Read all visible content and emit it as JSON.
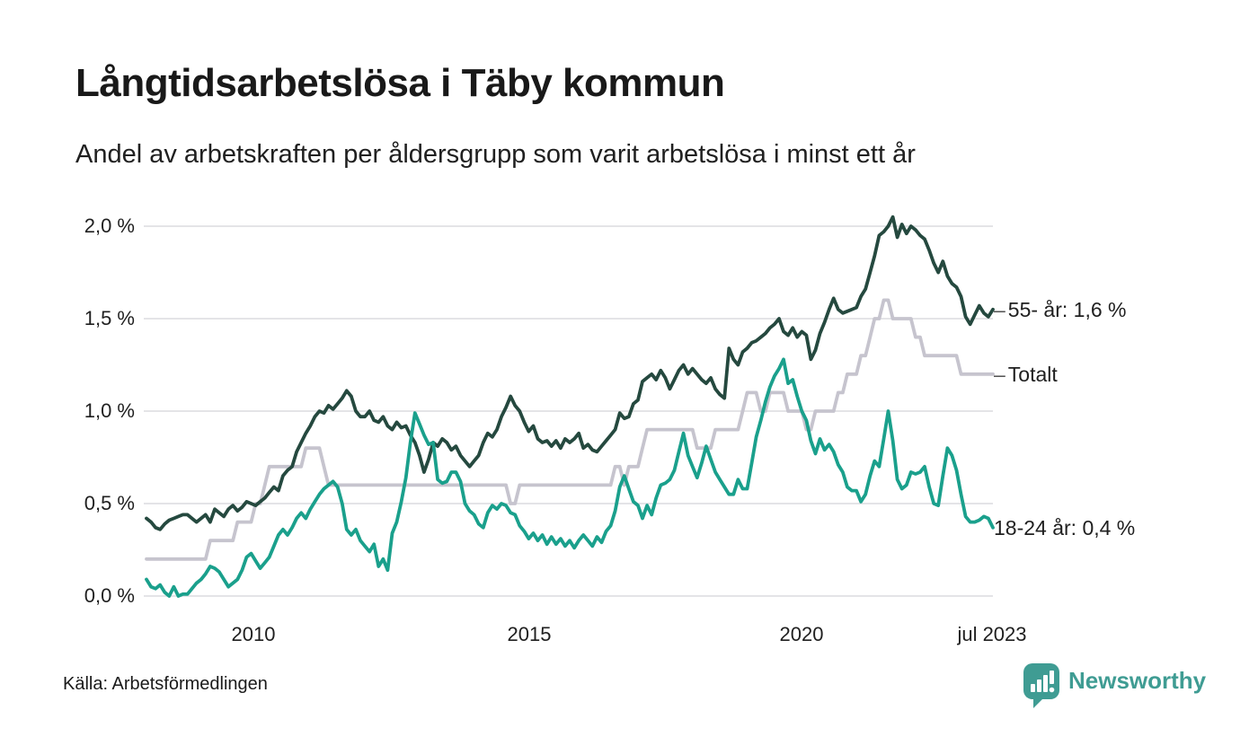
{
  "title": "Långtidsarbetslösa i Täby kommun",
  "subtitle": "Andel av arbetskraften per åldersgrupp som varit arbetslösa i minst ett år",
  "source": "Källa: Arbetsförmedlingen",
  "branding": {
    "name": "Newsworthy",
    "color": "#3f9c93",
    "icon": "newsworthy-speech-bubble-bar-chart-icon"
  },
  "colors": {
    "background": "#ffffff",
    "gridline": "#e4e4e7",
    "text": "#1f1f1f",
    "label_tick": "#555555"
  },
  "chart_data": {
    "type": "line",
    "title": "Långtidsarbetslösa i Täby kommun",
    "subtitle": "Andel av arbetskraften per åldersgrupp som varit arbetslösa i minst ett år",
    "x_start": "2008-01",
    "x_end": "2023-07",
    "x_interval": "monthly",
    "x_tick_labels": [
      "2010",
      "2015",
      "2020",
      "jul 2023"
    ],
    "y_tick_labels": [
      "2,0 %",
      "1,5 %",
      "1,0 %",
      "0,5 %",
      "0,0 %"
    ],
    "ylabel": "",
    "xlabel": "",
    "ylim": [
      0,
      2.1
    ],
    "grid": "horizontal",
    "legend_position": "right-end-labels",
    "draw_order": [
      1,
      0,
      2
    ],
    "series": [
      {
        "id": "55-ar",
        "name": "55- år",
        "end_label": "55- år: 1,6 %",
        "tick": true,
        "color": "#25493f",
        "values": [
          0.42,
          0.4,
          0.37,
          0.36,
          0.39,
          0.41,
          0.42,
          0.43,
          0.44,
          0.44,
          0.42,
          0.4,
          0.42,
          0.44,
          0.4,
          0.47,
          0.45,
          0.43,
          0.47,
          0.49,
          0.46,
          0.48,
          0.51,
          0.5,
          0.49,
          0.51,
          0.53,
          0.56,
          0.59,
          0.57,
          0.65,
          0.68,
          0.7,
          0.78,
          0.83,
          0.88,
          0.92,
          0.97,
          1.0,
          0.99,
          1.03,
          1.01,
          1.04,
          1.07,
          1.11,
          1.08,
          1.0,
          0.97,
          0.97,
          1.0,
          0.95,
          0.94,
          0.97,
          0.92,
          0.9,
          0.94,
          0.91,
          0.92,
          0.87,
          0.83,
          0.76,
          0.67,
          0.74,
          0.83,
          0.81,
          0.85,
          0.83,
          0.79,
          0.81,
          0.76,
          0.73,
          0.7,
          0.73,
          0.76,
          0.83,
          0.88,
          0.86,
          0.9,
          0.97,
          1.02,
          1.08,
          1.03,
          1.0,
          0.94,
          0.89,
          0.92,
          0.85,
          0.83,
          0.84,
          0.81,
          0.84,
          0.8,
          0.85,
          0.83,
          0.85,
          0.88,
          0.8,
          0.82,
          0.79,
          0.78,
          0.81,
          0.84,
          0.87,
          0.9,
          0.99,
          0.96,
          0.97,
          1.04,
          1.06,
          1.16,
          1.18,
          1.2,
          1.17,
          1.22,
          1.18,
          1.12,
          1.17,
          1.22,
          1.25,
          1.2,
          1.23,
          1.2,
          1.17,
          1.15,
          1.18,
          1.12,
          1.09,
          1.07,
          1.34,
          1.28,
          1.25,
          1.32,
          1.34,
          1.37,
          1.38,
          1.4,
          1.42,
          1.45,
          1.47,
          1.5,
          1.43,
          1.41,
          1.45,
          1.4,
          1.43,
          1.41,
          1.28,
          1.33,
          1.42,
          1.48,
          1.55,
          1.61,
          1.55,
          1.53,
          1.54,
          1.55,
          1.56,
          1.62,
          1.66,
          1.75,
          1.84,
          1.95,
          1.97,
          2.0,
          2.05,
          1.94,
          2.01,
          1.96,
          2.0,
          1.98,
          1.95,
          1.93,
          1.87,
          1.8,
          1.75,
          1.81,
          1.73,
          1.69,
          1.67,
          1.62,
          1.51,
          1.47,
          1.52,
          1.57,
          1.53,
          1.51,
          1.55
        ]
      },
      {
        "id": "totalt",
        "name": "Totalt",
        "end_label": "Totalt",
        "tick": true,
        "color": "#c6c4ce",
        "values": [
          0.2,
          0.2,
          0.2,
          0.2,
          0.2,
          0.2,
          0.2,
          0.2,
          0.2,
          0.2,
          0.2,
          0.2,
          0.2,
          0.2,
          0.3,
          0.3,
          0.3,
          0.3,
          0.3,
          0.3,
          0.4,
          0.4,
          0.4,
          0.4,
          0.5,
          0.5,
          0.6,
          0.7,
          0.7,
          0.7,
          0.7,
          0.7,
          0.7,
          0.7,
          0.7,
          0.8,
          0.8,
          0.8,
          0.8,
          0.7,
          0.6,
          0.6,
          0.6,
          0.6,
          0.6,
          0.6,
          0.6,
          0.6,
          0.6,
          0.6,
          0.6,
          0.6,
          0.6,
          0.6,
          0.6,
          0.6,
          0.6,
          0.6,
          0.6,
          0.6,
          0.6,
          0.6,
          0.6,
          0.6,
          0.6,
          0.6,
          0.6,
          0.6,
          0.6,
          0.6,
          0.6,
          0.6,
          0.6,
          0.6,
          0.6,
          0.6,
          0.6,
          0.6,
          0.6,
          0.6,
          0.5,
          0.5,
          0.6,
          0.6,
          0.6,
          0.6,
          0.6,
          0.6,
          0.6,
          0.6,
          0.6,
          0.6,
          0.6,
          0.6,
          0.6,
          0.6,
          0.6,
          0.6,
          0.6,
          0.6,
          0.6,
          0.6,
          0.6,
          0.7,
          0.7,
          0.6,
          0.7,
          0.7,
          0.7,
          0.8,
          0.9,
          0.9,
          0.9,
          0.9,
          0.9,
          0.9,
          0.9,
          0.9,
          0.9,
          0.9,
          0.9,
          0.8,
          0.8,
          0.8,
          0.8,
          0.9,
          0.9,
          0.9,
          0.9,
          0.9,
          0.9,
          1.0,
          1.1,
          1.1,
          1.1,
          1.0,
          1.0,
          1.1,
          1.1,
          1.1,
          1.1,
          1.0,
          1.0,
          1.0,
          1.0,
          0.9,
          0.9,
          1.0,
          1.0,
          1.0,
          1.0,
          1.0,
          1.1,
          1.1,
          1.2,
          1.2,
          1.2,
          1.3,
          1.3,
          1.4,
          1.5,
          1.5,
          1.6,
          1.6,
          1.5,
          1.5,
          1.5,
          1.5,
          1.5,
          1.4,
          1.4,
          1.3,
          1.3,
          1.3,
          1.3,
          1.3,
          1.3,
          1.3,
          1.3,
          1.2,
          1.2,
          1.2,
          1.2,
          1.2,
          1.2,
          1.2,
          1.2
        ]
      },
      {
        "id": "18-24-ar",
        "name": "18-24 år",
        "end_label": "18-24 år: 0,4 %",
        "tick": false,
        "color": "#1aa08c",
        "values": [
          0.09,
          0.05,
          0.04,
          0.06,
          0.02,
          0.0,
          0.05,
          0.0,
          0.01,
          0.01,
          0.04,
          0.07,
          0.09,
          0.12,
          0.16,
          0.15,
          0.13,
          0.09,
          0.05,
          0.07,
          0.09,
          0.14,
          0.21,
          0.23,
          0.19,
          0.15,
          0.18,
          0.21,
          0.27,
          0.33,
          0.36,
          0.33,
          0.37,
          0.42,
          0.45,
          0.42,
          0.47,
          0.51,
          0.55,
          0.58,
          0.6,
          0.62,
          0.59,
          0.5,
          0.36,
          0.33,
          0.36,
          0.3,
          0.27,
          0.24,
          0.28,
          0.16,
          0.2,
          0.14,
          0.34,
          0.4,
          0.51,
          0.64,
          0.83,
          0.99,
          0.93,
          0.87,
          0.82,
          0.83,
          0.63,
          0.61,
          0.62,
          0.67,
          0.67,
          0.62,
          0.5,
          0.46,
          0.44,
          0.39,
          0.37,
          0.45,
          0.49,
          0.47,
          0.5,
          0.49,
          0.45,
          0.44,
          0.38,
          0.35,
          0.31,
          0.34,
          0.3,
          0.33,
          0.28,
          0.32,
          0.28,
          0.31,
          0.27,
          0.3,
          0.26,
          0.3,
          0.33,
          0.3,
          0.27,
          0.32,
          0.29,
          0.35,
          0.38,
          0.46,
          0.59,
          0.65,
          0.58,
          0.51,
          0.49,
          0.42,
          0.49,
          0.44,
          0.53,
          0.6,
          0.61,
          0.63,
          0.68,
          0.78,
          0.88,
          0.76,
          0.7,
          0.64,
          0.72,
          0.81,
          0.74,
          0.67,
          0.63,
          0.59,
          0.55,
          0.55,
          0.63,
          0.58,
          0.58,
          0.72,
          0.86,
          0.95,
          1.05,
          1.13,
          1.19,
          1.23,
          1.28,
          1.15,
          1.17,
          1.08,
          1.0,
          0.95,
          0.84,
          0.77,
          0.85,
          0.79,
          0.82,
          0.78,
          0.71,
          0.67,
          0.59,
          0.57,
          0.57,
          0.51,
          0.55,
          0.65,
          0.73,
          0.7,
          0.85,
          1.0,
          0.84,
          0.63,
          0.58,
          0.6,
          0.67,
          0.66,
          0.67,
          0.7,
          0.59,
          0.5,
          0.49,
          0.65,
          0.8,
          0.76,
          0.68,
          0.55,
          0.43,
          0.4,
          0.4,
          0.41,
          0.43,
          0.42,
          0.37
        ]
      }
    ]
  }
}
